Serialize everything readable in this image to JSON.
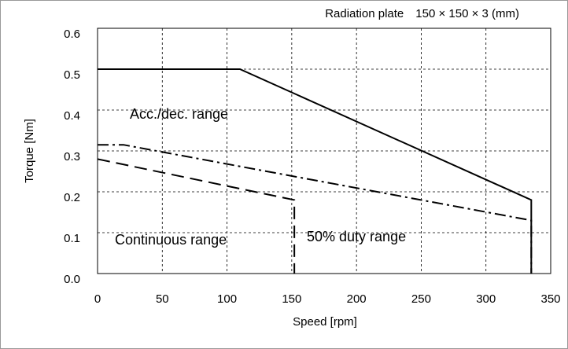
{
  "chart_data": {
    "type": "line",
    "title": "Radiation plate　150 × 150 × 3 (mm)",
    "x_label": "Speed [rpm]",
    "y_label": "Torque [Nm]",
    "xlim": [
      0,
      350
    ],
    "xticks": [
      0,
      50,
      100,
      150,
      200,
      250,
      300,
      350
    ],
    "ylim": [
      0,
      0.6
    ],
    "yticks": [
      {
        "value": 0,
        "label": "0.0"
      },
      0.1,
      0.2,
      0.3,
      0.4,
      0.5,
      0.6
    ],
    "grid": true,
    "series": [
      {
        "color": "#000000",
        "dash": "solid",
        "x": [
          0,
          110,
          335,
          335
        ],
        "values": [
          0.5,
          0.5,
          0.18,
          0
        ]
      },
      {
        "color": "#000000",
        "dash": "dashdot",
        "x": [
          0,
          20,
          335,
          335
        ],
        "values": [
          0.315,
          0.315,
          0.13,
          0
        ]
      },
      {
        "color": "#000000",
        "dash": "dashed",
        "x": [
          0,
          152,
          152
        ],
        "values": [
          0.28,
          0.18,
          0
        ]
      }
    ],
    "annotations": [
      "Acc./dec. range",
      "Continuous range",
      "50% duty range"
    ]
  }
}
